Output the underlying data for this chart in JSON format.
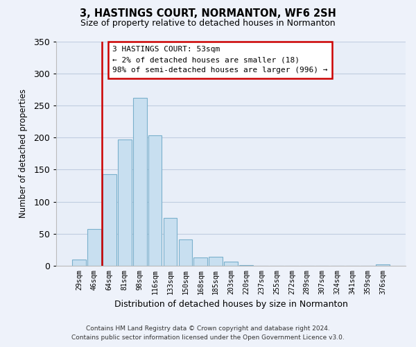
{
  "title": "3, HASTINGS COURT, NORMANTON, WF6 2SH",
  "subtitle": "Size of property relative to detached houses in Normanton",
  "xlabel": "Distribution of detached houses by size in Normanton",
  "ylabel": "Number of detached properties",
  "bar_labels": [
    "29sqm",
    "46sqm",
    "64sqm",
    "81sqm",
    "98sqm",
    "116sqm",
    "133sqm",
    "150sqm",
    "168sqm",
    "185sqm",
    "203sqm",
    "220sqm",
    "237sqm",
    "255sqm",
    "272sqm",
    "289sqm",
    "307sqm",
    "324sqm",
    "341sqm",
    "359sqm",
    "376sqm"
  ],
  "bar_values": [
    10,
    57,
    143,
    197,
    262,
    204,
    75,
    41,
    13,
    14,
    6,
    1,
    0,
    0,
    0,
    0,
    0,
    0,
    0,
    0,
    2
  ],
  "bar_color": "#c8dff0",
  "bar_edge_color": "#7ab0cc",
  "reference_line_x": 1.5,
  "reference_line_color": "#cc0000",
  "annotation_title": "3 HASTINGS COURT: 53sqm",
  "annotation_line1": "← 2% of detached houses are smaller (18)",
  "annotation_line2": "98% of semi-detached houses are larger (996) →",
  "annotation_box_color": "#ffffff",
  "annotation_box_edge_color": "#cc0000",
  "ylim": [
    0,
    350
  ],
  "yticks": [
    0,
    50,
    100,
    150,
    200,
    250,
    300,
    350
  ],
  "footer_line1": "Contains HM Land Registry data © Crown copyright and database right 2024.",
  "footer_line2": "Contains public sector information licensed under the Open Government Licence v3.0.",
  "background_color": "#eef2fa",
  "plot_bg_color": "#e8eef8",
  "grid_color": "#c0cce0"
}
